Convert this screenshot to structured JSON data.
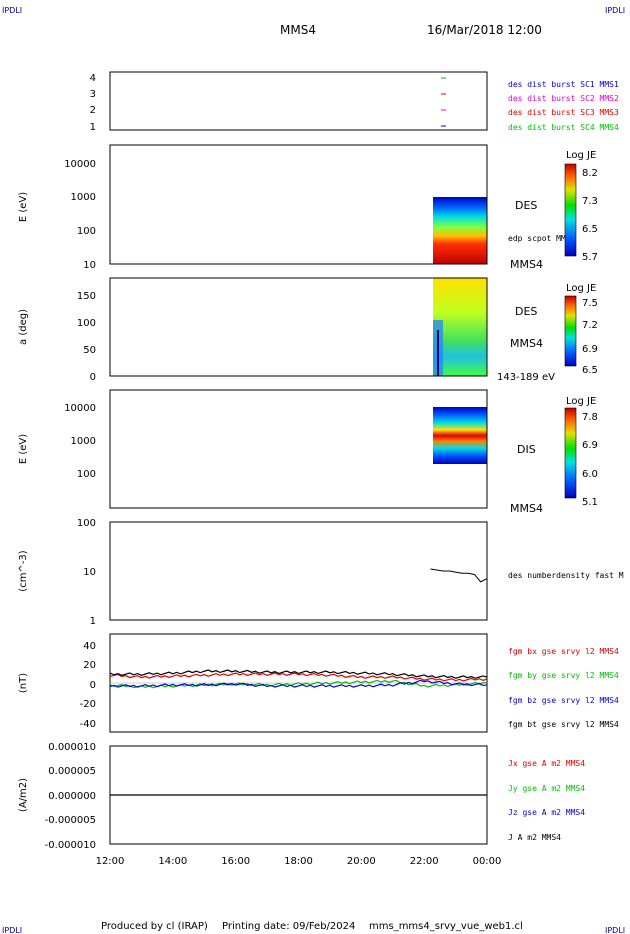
{
  "corner_label": "IPDLI",
  "header": {
    "spacecraft": "MMS4",
    "date": "16/Mar/2018 12:00"
  },
  "footer": {
    "produced_by": "Produced by cl (IRAP)",
    "printing_date": "Printing date: 09/Feb/2024",
    "filename": "mms_mms4_srvy_vue_web1.cl"
  },
  "colors": {
    "red": "#e00000",
    "green": "#00c000",
    "blue": "#0000e0",
    "magenta": "#e000e0",
    "black": "#000000"
  },
  "chart_data": [
    {
      "type": "scatter",
      "panel": "burst availability",
      "ylim": [
        0.5,
        4.5
      ],
      "yticks": [
        "1",
        "2",
        "3",
        "4"
      ],
      "x": [
        "22:28",
        "22:28",
        "22:28",
        "22:28"
      ],
      "y": [
        1,
        2,
        3,
        4
      ],
      "colors": [
        "#0000e0",
        "#e000e0",
        "#e00000",
        "#00c000"
      ],
      "legend": [
        {
          "label": "des dist burst SC1 MMS1",
          "color": "#0000e0"
        },
        {
          "label": "des dist burst SC2 MMS2",
          "color": "#e000e0"
        },
        {
          "label": "des dist burst SC3 MMS3",
          "color": "#e00000"
        },
        {
          "label": "des dist burst SC4 MMS4",
          "color": "#00c000"
        }
      ]
    },
    {
      "type": "heatmap",
      "panel": "DES energy spectrogram",
      "ylabel": "E (eV)",
      "yscale": "log",
      "ylim": [
        10,
        20000
      ],
      "yticks": [
        "10",
        "100",
        "1000",
        "10000"
      ],
      "xrange": [
        "22:15",
        "24:00"
      ],
      "data_ylim": [
        10,
        1000
      ],
      "side_label": "DES",
      "note": "edp scpot MMS4",
      "bottom_label": "MMS4",
      "colorbar": {
        "title": "Log JE",
        "ticks": [
          "8.2",
          "7.3",
          "6.5",
          "5.7"
        ]
      }
    },
    {
      "type": "heatmap",
      "panel": "DES pitch angle",
      "ylabel": "a (deg)",
      "ylim": [
        0,
        180
      ],
      "yticks": [
        "0",
        "50",
        "100",
        "150"
      ],
      "xrange": [
        "22:15",
        "24:00"
      ],
      "side_label": "DES",
      "side_label2": "MMS4",
      "bottom_label": "143-189 eV",
      "colorbar": {
        "title": "Log JE",
        "ticks": [
          "7.5",
          "7.2",
          "6.9",
          "6.5"
        ]
      }
    },
    {
      "type": "heatmap",
      "panel": "DIS energy spectrogram",
      "ylabel": "E (eV)",
      "yscale": "log",
      "ylim": [
        20,
        20000
      ],
      "yticks": [
        "100",
        "1000",
        "10000"
      ],
      "xrange": [
        "22:15",
        "24:00"
      ],
      "data_ylim": [
        200,
        10000
      ],
      "side_label": "DIS",
      "bottom_label": "MMS4",
      "colorbar": {
        "title": "Log JE",
        "ticks": [
          "7.8",
          "6.9",
          "6.0",
          "5.1"
        ]
      }
    },
    {
      "type": "line",
      "panel": "density",
      "ylabel": "(cm^-3)",
      "yscale": "log",
      "ylim": [
        1,
        100
      ],
      "yticks": [
        "1",
        "10",
        "100"
      ],
      "series": [
        {
          "name": "des numberdensity fast M",
          "color": "#000000",
          "x": [
            22.2,
            22.4,
            22.6,
            22.8,
            23.0,
            23.2,
            23.4,
            23.6,
            23.8,
            24.0
          ],
          "y": [
            11,
            10.5,
            10,
            10,
            9.5,
            9,
            9,
            8.5,
            6,
            7
          ]
        }
      ]
    },
    {
      "type": "line",
      "panel": "magnetic field",
      "ylabel": "(nT)",
      "ylim": [
        -50,
        50
      ],
      "yticks": [
        "-40",
        "-20",
        "0",
        "20",
        "40"
      ],
      "x": [
        12,
        13,
        14,
        15,
        16,
        17,
        18,
        19,
        20,
        21,
        22,
        23,
        24
      ],
      "series": [
        {
          "name": "fgm bx gse srvy l2 MMS4",
          "color": "#e00000",
          "values": [
            8,
            6,
            7,
            8,
            9,
            9,
            9,
            8,
            6,
            6,
            4,
            3,
            4
          ]
        },
        {
          "name": "fgm by gse srvy l2 MMS4",
          "color": "#00c000",
          "values": [
            -2,
            -4,
            -3,
            -2,
            -1,
            -2,
            -1,
            0,
            1,
            2,
            -3,
            -2,
            0
          ]
        },
        {
          "name": "fgm bz gse srvy l2 MMS4",
          "color": "#0000e0",
          "values": [
            -3,
            -3,
            -2,
            -2,
            -1,
            -3,
            -3,
            -3,
            -3,
            -2,
            2,
            -1,
            -2
          ]
        },
        {
          "name": "fgm bt gse srvy l2 MMS4",
          "color": "#000000",
          "values": [
            9,
            9,
            10,
            12,
            12,
            11,
            11,
            11,
            10,
            9,
            7,
            6,
            6
          ]
        }
      ]
    },
    {
      "type": "line",
      "panel": "current density",
      "ylabel": "(A/m2)",
      "ylim": [
        -1e-05,
        1e-05
      ],
      "yticks": [
        "-0.000010",
        "-0.000005",
        "0.000000",
        "0.000005",
        "0.000010"
      ],
      "series": [
        {
          "name": "Jx gse A m2 MMS4",
          "color": "#e00000"
        },
        {
          "name": "Jy gse A m2 MMS4",
          "color": "#00c000"
        },
        {
          "name": "Jz gse A m2 MMS4",
          "color": "#0000e0"
        },
        {
          "name": "J A m2 MMS4",
          "color": "#000000"
        }
      ],
      "x": [
        12,
        24
      ],
      "values": [
        0,
        0
      ]
    }
  ],
  "x_axis": {
    "ticks": [
      "12:00",
      "14:00",
      "16:00",
      "18:00",
      "20:00",
      "22:00",
      "00:00"
    ]
  }
}
